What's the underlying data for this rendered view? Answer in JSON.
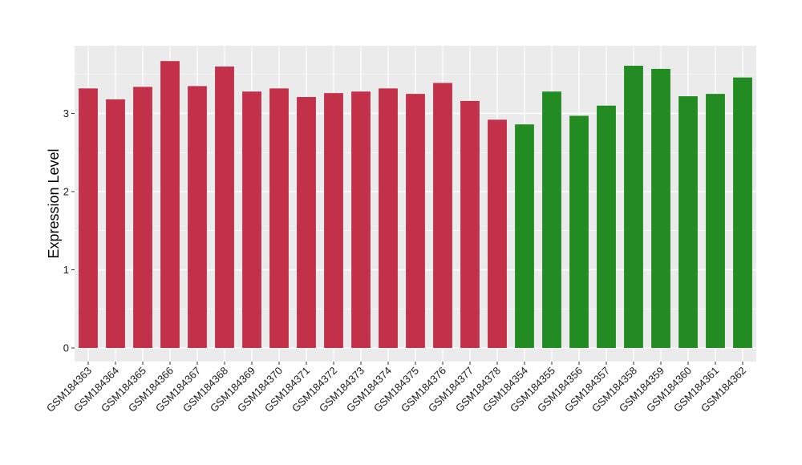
{
  "chart_data": {
    "type": "bar",
    "title": "",
    "xlabel": "",
    "ylabel": "Expression Level",
    "ylim": [
      0,
      3.9
    ],
    "yticks": [
      0,
      1,
      2,
      3
    ],
    "grid": true,
    "background": "#ebebeb",
    "categories": [
      "GSM184363",
      "GSM184364",
      "GSM184365",
      "GSM184366",
      "GSM184367",
      "GSM184368",
      "GSM184369",
      "GSM184370",
      "GSM184371",
      "GSM184372",
      "GSM184373",
      "GSM184374",
      "GSM184375",
      "GSM184376",
      "GSM184377",
      "GSM184378",
      "GSM184354",
      "GSM184355",
      "GSM184356",
      "GSM184357",
      "GSM184358",
      "GSM184359",
      "GSM184360",
      "GSM184361",
      "GSM184362"
    ],
    "values": [
      3.32,
      3.18,
      3.34,
      3.67,
      3.35,
      3.6,
      3.28,
      3.32,
      3.21,
      3.26,
      3.28,
      3.32,
      3.25,
      3.39,
      3.16,
      2.92,
      2.86,
      3.28,
      2.97,
      3.1,
      3.61,
      3.57,
      3.22,
      3.25,
      3.46
    ],
    "bar_colors": [
      "#c3304a",
      "#c3304a",
      "#c3304a",
      "#c3304a",
      "#c3304a",
      "#c3304a",
      "#c3304a",
      "#c3304a",
      "#c3304a",
      "#c3304a",
      "#c3304a",
      "#c3304a",
      "#c3304a",
      "#c3304a",
      "#c3304a",
      "#c3304a",
      "#228b22",
      "#228b22",
      "#228b22",
      "#228b22",
      "#228b22",
      "#228b22",
      "#228b22",
      "#228b22",
      "#228b22"
    ]
  }
}
